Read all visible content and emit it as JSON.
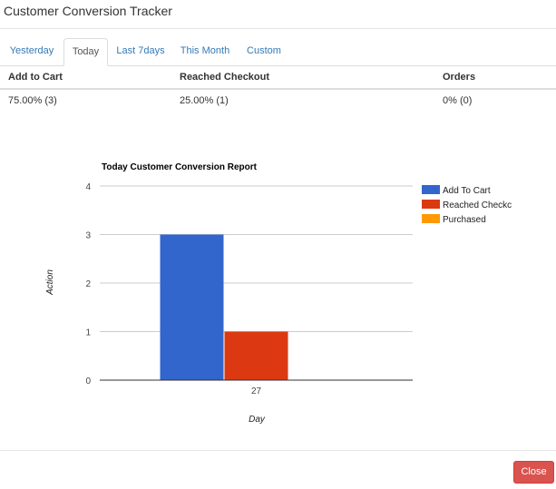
{
  "modal": {
    "title": "Customer Conversion Tracker",
    "close_label": "Close"
  },
  "tabs": [
    {
      "label": "Yesterday",
      "active": false
    },
    {
      "label": "Today",
      "active": true
    },
    {
      "label": "Last 7days",
      "active": false
    },
    {
      "label": "This Month",
      "active": false
    },
    {
      "label": "Custom",
      "active": false
    }
  ],
  "stats": {
    "headers": [
      "Add to Cart",
      "Reached Checkout",
      "Orders"
    ],
    "values": [
      "75.00% (3)",
      "25.00% (1)",
      "0% (0)"
    ]
  },
  "colors": {
    "link": "#337ab7",
    "add_to_cart": "#3366cc",
    "reached_checkout": "#dc3912",
    "purchased": "#ff9900",
    "close_button": "#d9534f"
  },
  "chart_data": {
    "type": "bar",
    "title": "Today Customer Conversion Report",
    "xlabel": "Day",
    "ylabel": "Action",
    "categories": [
      "27"
    ],
    "ylim": [
      0,
      4
    ],
    "yticks": [
      "0",
      "1",
      "2",
      "3",
      "4"
    ],
    "grid": true,
    "legend_position": "right",
    "series": [
      {
        "name": "Add To Cart",
        "legend_label": "Add To Cart",
        "values": [
          3
        ],
        "color": "#3366cc"
      },
      {
        "name": "Reached Checkout",
        "legend_label": "Reached Checkc",
        "values": [
          1
        ],
        "color": "#dc3912"
      },
      {
        "name": "Purchased",
        "legend_label": "Purchased",
        "values": [
          0
        ],
        "color": "#ff9900"
      }
    ]
  }
}
